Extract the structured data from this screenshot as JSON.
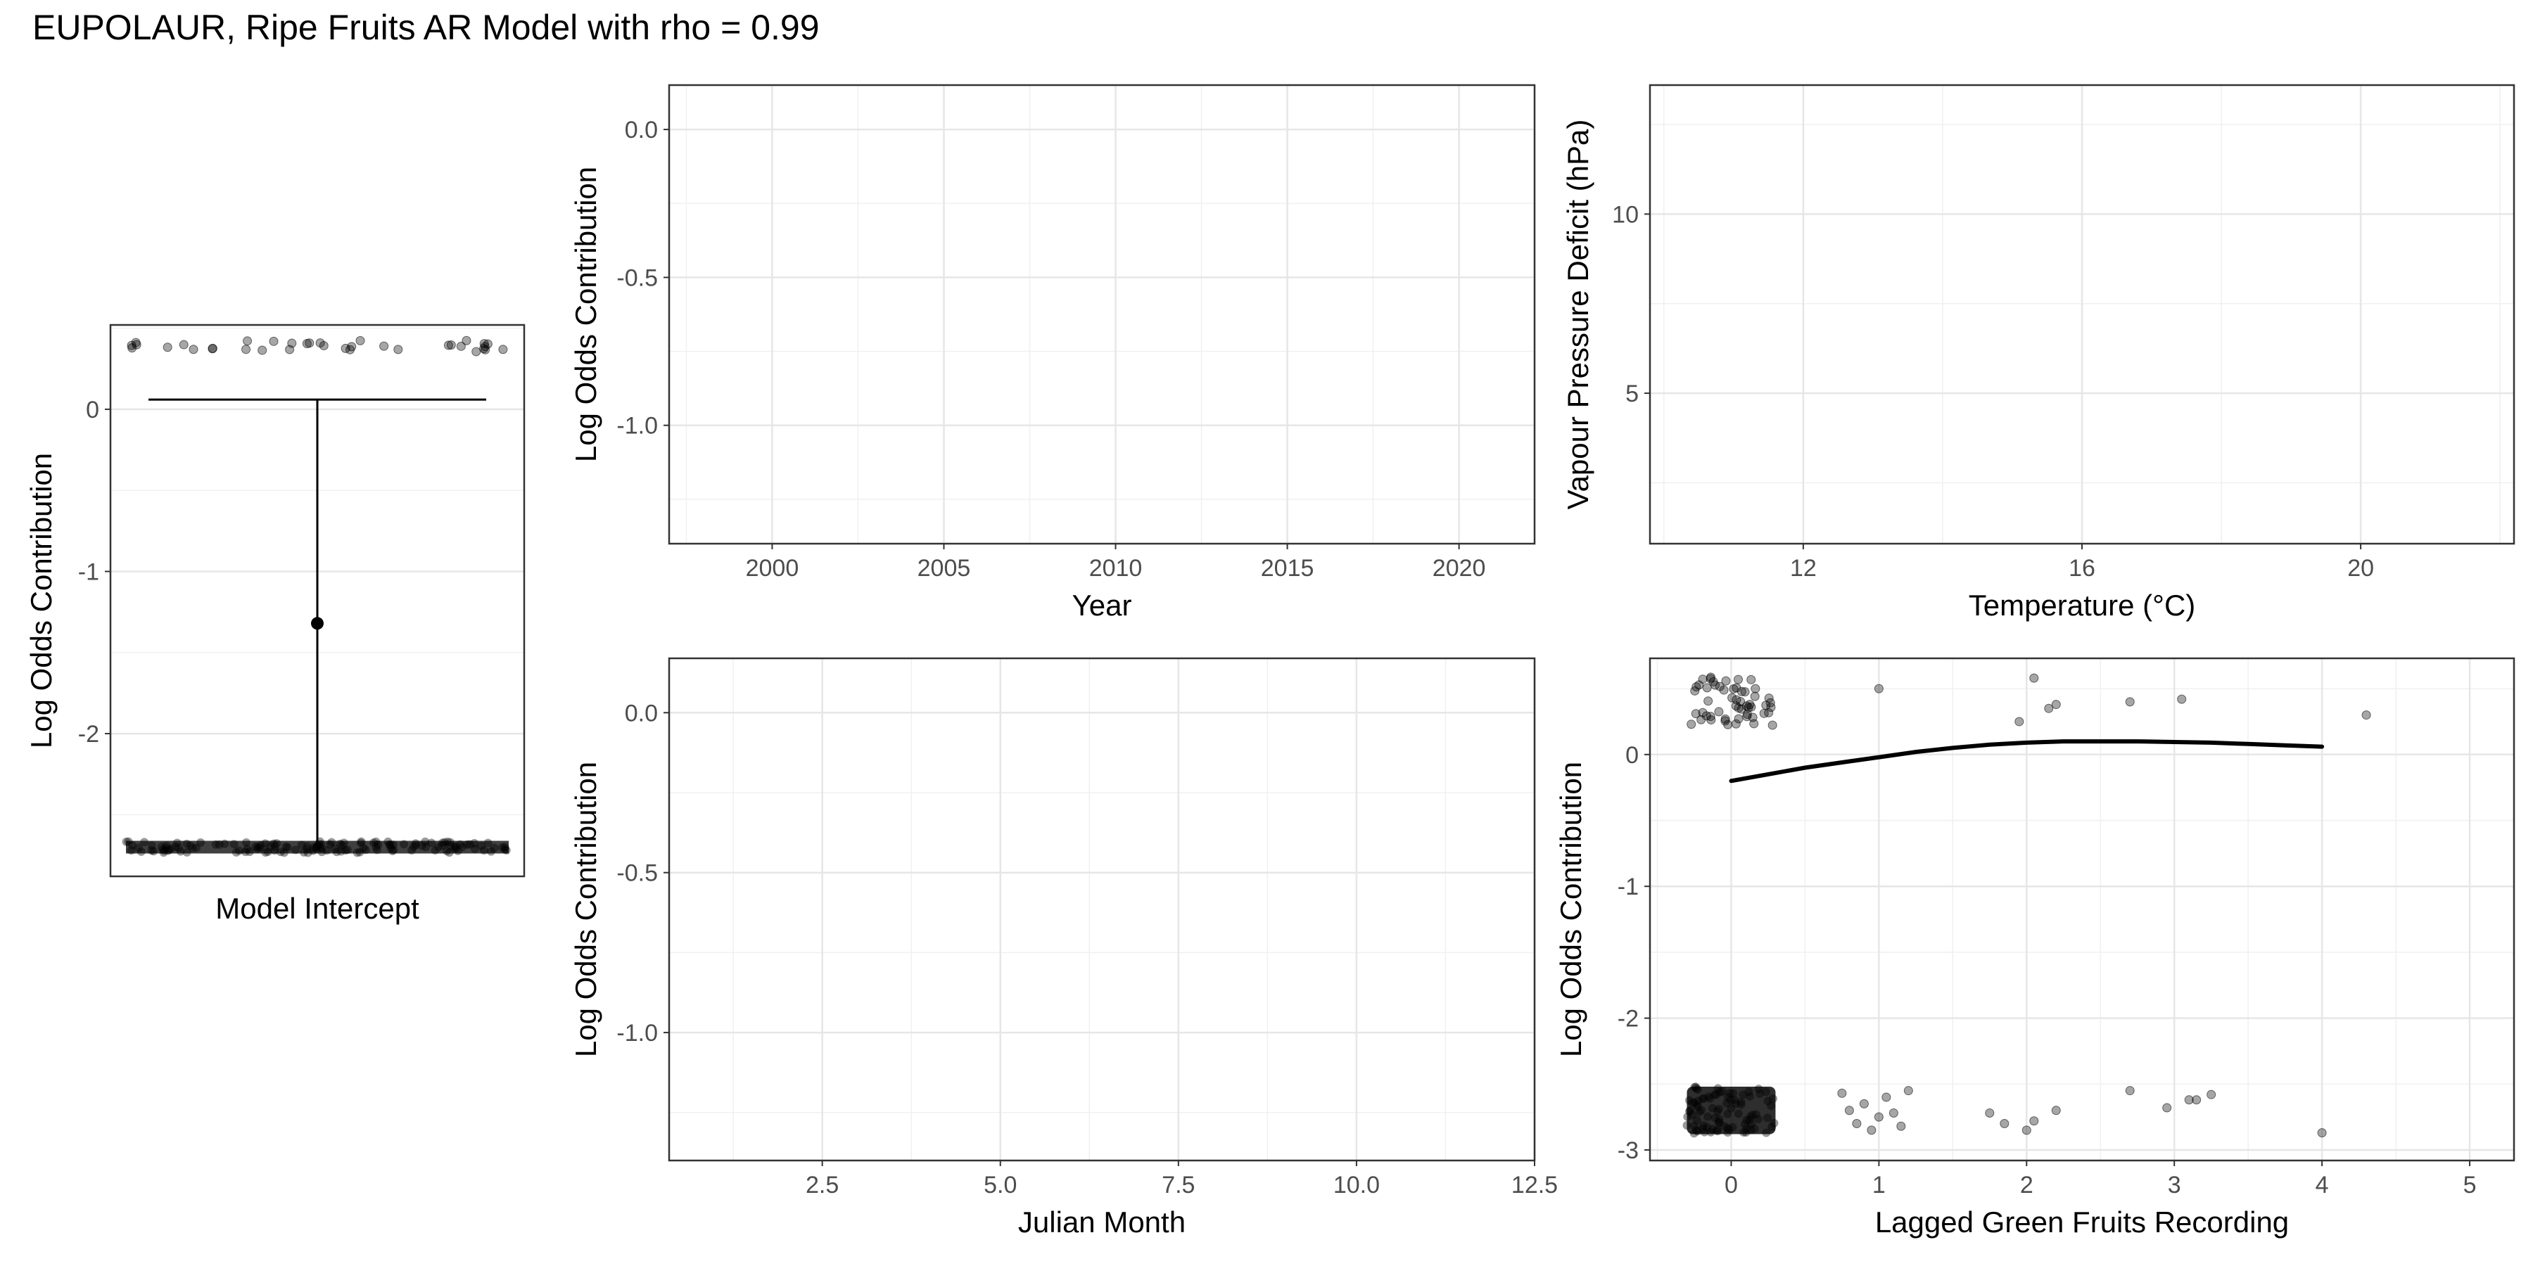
{
  "figure": {
    "title": "EUPOLAUR, Ripe Fruits AR Model with rho = 0.99"
  },
  "chart_data": [
    {
      "type": "scatter",
      "panel": "intercept",
      "xlabel": "Model Intercept",
      "ylabel": "Log Odds Contribution",
      "ylim": [
        -2.88,
        0.52
      ],
      "yticks": [
        0,
        -1,
        -2
      ],
      "ytick_labels": [
        "0",
        "-1",
        "-2"
      ],
      "grid": true,
      "point_estimate": -1.32,
      "ci": [
        -2.67,
        0.06
      ],
      "jitter_upper_y": 0.39,
      "jitter_lower_y": -2.7
    },
    {
      "type": "line",
      "panel": "year",
      "xlabel": "Year",
      "ylabel": "Log Odds Contribution",
      "xlim": [
        1997,
        2022.2
      ],
      "ylim": [
        -1.4,
        0.15
      ],
      "xticks": [
        2000,
        2005,
        2010,
        2015,
        2020
      ],
      "xtick_labels": [
        "2000",
        "2005",
        "2010",
        "2015",
        "2020"
      ],
      "yticks": [
        0,
        -0.5,
        -1
      ],
      "ytick_labels": [
        "0.0",
        "-0.5",
        "-1.0"
      ],
      "grid": true
    },
    {
      "type": "line",
      "panel": "temperature",
      "xlabel": "Temperature (°C)",
      "ylabel": "Vapour Pressure Deficit (hPa)",
      "xlim": [
        9.8,
        22.2
      ],
      "ylim": [
        0.8,
        13.6
      ],
      "xticks": [
        12,
        16,
        20
      ],
      "xtick_labels": [
        "12",
        "16",
        "20"
      ],
      "yticks": [
        5,
        10
      ],
      "ytick_labels": [
        "5",
        "10"
      ],
      "grid": true
    },
    {
      "type": "line",
      "panel": "month",
      "xlabel": "Julian Month",
      "ylabel": "Log Odds Contribution",
      "xlim": [
        0.35,
        12.5
      ],
      "ylim": [
        -1.4,
        0.17
      ],
      "xticks": [
        2.5,
        5,
        7.5,
        10,
        12.5
      ],
      "xtick_labels": [
        "2.5",
        "5.0",
        "7.5",
        "10.0",
        "12.5"
      ],
      "yticks": [
        0,
        -0.5,
        -1
      ],
      "ytick_labels": [
        "0.0",
        "-0.5",
        "-1.0"
      ],
      "grid": true
    },
    {
      "type": "scatter",
      "panel": "lagged",
      "xlabel": "Lagged Green Fruits Recording",
      "ylabel": "Log Odds Contribution",
      "xlim": [
        -0.55,
        5.3
      ],
      "ylim": [
        -3.08,
        0.73
      ],
      "xticks": [
        0,
        1,
        2,
        3,
        4,
        5
      ],
      "xtick_labels": [
        "0",
        "1",
        "2",
        "3",
        "4",
        "5"
      ],
      "yticks": [
        0,
        -1,
        -2,
        -3
      ],
      "ytick_labels": [
        "0",
        "-1",
        "-2",
        "-3"
      ],
      "grid": true,
      "smooth_line": {
        "x": [
          0,
          0.25,
          0.5,
          0.75,
          1,
          1.25,
          1.5,
          1.75,
          2,
          2.25,
          2.5,
          2.75,
          3,
          3.25,
          3.5,
          3.75,
          4
        ],
        "y": [
          -0.2,
          -0.15,
          -0.1,
          -0.06,
          -0.02,
          0.02,
          0.05,
          0.075,
          0.09,
          0.1,
          0.1,
          0.1,
          0.095,
          0.09,
          0.08,
          0.07,
          0.06
        ]
      },
      "points_upper": {
        "x": [
          1.0,
          1.95,
          2.05,
          2.15,
          2.2,
          2.7,
          3.05,
          4.3
        ],
        "y": [
          0.5,
          0.25,
          0.58,
          0.35,
          0.38,
          0.4,
          0.42,
          0.3
        ]
      },
      "points_lower": {
        "x": [
          0.75,
          0.8,
          0.85,
          0.9,
          0.95,
          1.0,
          1.05,
          1.1,
          1.15,
          1.2,
          1.75,
          1.85,
          2.0,
          2.05,
          2.2,
          2.7,
          2.95,
          3.1,
          3.15,
          3.25,
          4.0
        ],
        "y": [
          -2.57,
          -2.7,
          -2.8,
          -2.65,
          -2.85,
          -2.75,
          -2.6,
          -2.72,
          -2.82,
          -2.55,
          -2.72,
          -2.8,
          -2.85,
          -2.78,
          -2.7,
          -2.55,
          -2.68,
          -2.62,
          -2.62,
          -2.58,
          -2.87
        ]
      }
    }
  ]
}
